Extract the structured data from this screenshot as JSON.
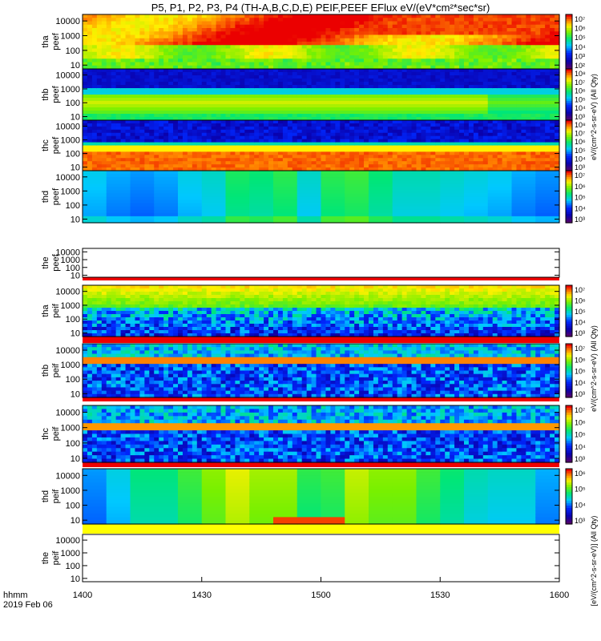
{
  "title": "P5, P1, P2, P3, P4 (TH-A,B,C,D,E) PEIF,PEEF EFlux eV/(eV*cm²*sec*sr)",
  "x_axis": {
    "row1": "hhmm",
    "row2": "2019 Feb 06",
    "ticks": [
      "1400",
      "1430",
      "1500",
      "1530",
      "1600"
    ],
    "range": [
      1400,
      1600
    ]
  },
  "colorbar_labels": [
    "eV/(cm^2-s-sr-eV) (All Qty)",
    "eV/(cm^2-s-sr-eV) (All Qty)",
    "[eV/(cm^2-s-sr-eV)] (All Qty)",
    "[eV/(cm2-s-sr-eV)]"
  ],
  "panels": [
    {
      "name": "tha-peef",
      "label1": "tha",
      "label2": "peef",
      "cb": [
        "10⁷",
        "10⁶",
        "10⁵",
        "10⁴",
        "10³",
        "10²"
      ]
    },
    {
      "name": "thb-peef",
      "label1": "thb",
      "label2": "peef",
      "cb": [
        "10⁸",
        "10⁷",
        "10⁶",
        "10⁵",
        "10⁴",
        "10³"
      ]
    },
    {
      "name": "thc-peef",
      "label1": "thc",
      "label2": "peef",
      "cb": [
        "10⁸",
        "10⁷",
        "10⁶",
        "10⁵",
        "10⁴",
        "10³"
      ]
    },
    {
      "name": "thd-peef",
      "label1": "thd",
      "label2": "peef",
      "cb": [
        "10⁷",
        "10⁶",
        "10⁵",
        "10⁴",
        "10³"
      ]
    },
    {
      "name": "the-peef",
      "label1": "the",
      "label2": "peef",
      "cb": []
    },
    {
      "name": "tha-peif",
      "label1": "tha",
      "label2": "peif",
      "cb": [
        "10⁷",
        "10⁶",
        "10⁵",
        "10⁴",
        "10³"
      ]
    },
    {
      "name": "thb-peif",
      "label1": "thb",
      "label2": "peif",
      "cb": [
        "10⁷",
        "10⁶",
        "10⁵",
        "10⁴",
        "10³"
      ]
    },
    {
      "name": "thc-peif",
      "label1": "thc",
      "label2": "peif",
      "cb": [
        "10⁷",
        "10⁶",
        "10⁵",
        "10⁴",
        "10³"
      ]
    },
    {
      "name": "thd-peif",
      "label1": "thd",
      "label2": "peif",
      "cb": [
        "10⁶",
        "10⁵",
        "10⁴",
        "10³"
      ]
    },
    {
      "name": "the-peif",
      "label1": "the",
      "label2": "peif",
      "cb": []
    }
  ],
  "chart_data": {
    "type": "heatmap",
    "title": "P5, P1, P2, P3, P4 (TH-A,B,C,D,E) PEIF,PEEF EFlux eV/(eV*cm²*sec*sr)",
    "x_label": "hhmm 2019 Feb 06",
    "x_range": [
      1400,
      1600
    ],
    "x_ticks": [
      "1400",
      "1430",
      "1500",
      "1530",
      "1600"
    ],
    "y_ticks": [
      "10",
      "100",
      "1000",
      "10000"
    ],
    "y_scale": "log",
    "colorscale": "rainbow (purple low → red high)",
    "series": [
      "tha peef",
      "thb peef",
      "thc peef",
      "thd peef",
      "the peef",
      "tha peif",
      "thb peif",
      "thc peif",
      "thd peif",
      "the peif"
    ],
    "note_empty": [
      "the peef",
      "the peif"
    ]
  }
}
